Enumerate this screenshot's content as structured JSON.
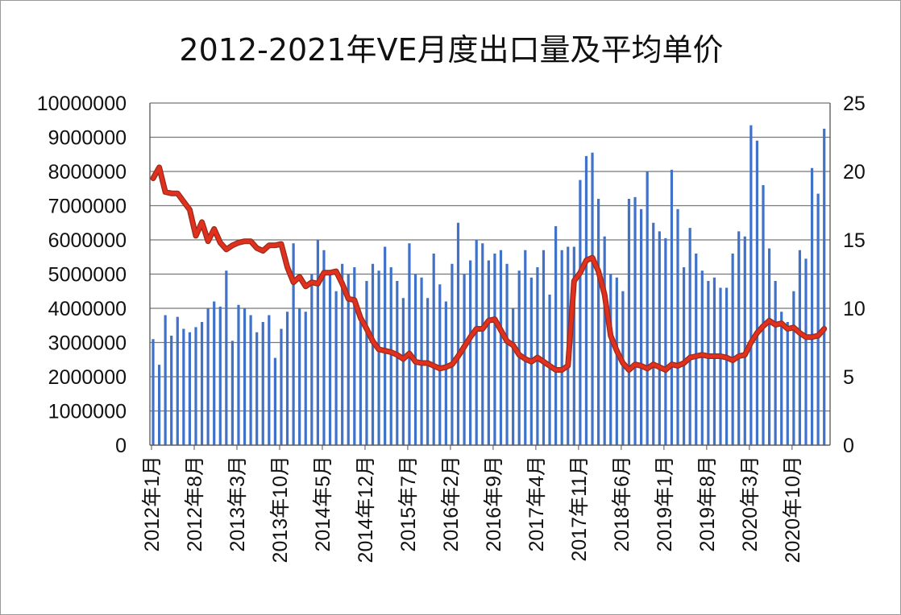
{
  "chart_data": {
    "type": "bar+line",
    "title": "2012-2021年VE月度出口量及平均单价",
    "xlabel": "",
    "ylabel": "",
    "y2label": "",
    "ylim": [
      0,
      10000000
    ],
    "y2lim": [
      0,
      25
    ],
    "yticks": [
      "0",
      "1000000",
      "2000000",
      "3000000",
      "4000000",
      "5000000",
      "6000000",
      "7000000",
      "8000000",
      "9000000",
      "10000000"
    ],
    "y2ticks": [
      "0",
      "5",
      "10",
      "15",
      "20",
      "25"
    ],
    "grid": true,
    "legend": "none",
    "x_tick_labels": [
      "2012年1月",
      "2012年8月",
      "2013年3月",
      "2013年10月",
      "2014年5月",
      "2014年12月",
      "2015年7月",
      "2016年2月",
      "2016年9月",
      "2017年4月",
      "2017年11月",
      "2018年6月",
      "2019年1月",
      "2019年8月",
      "2020年3月",
      "2020年10月"
    ],
    "categories": [
      "2012年1月",
      "2012年2月",
      "2012年3月",
      "2012年4月",
      "2012年5月",
      "2012年6月",
      "2012年7月",
      "2012年8月",
      "2012年9月",
      "2012年10月",
      "2012年11月",
      "2012年12月",
      "2013年1月",
      "2013年2月",
      "2013年3月",
      "2013年4月",
      "2013年5月",
      "2013年6月",
      "2013年7月",
      "2013年8月",
      "2013年9月",
      "2013年10月",
      "2013年11月",
      "2013年12月",
      "2014年1月",
      "2014年2月",
      "2014年3月",
      "2014年4月",
      "2014年5月",
      "2014年6月",
      "2014年7月",
      "2014年8月",
      "2014年9月",
      "2014年10月",
      "2014年11月",
      "2014年12月",
      "2015年1月",
      "2015年2月",
      "2015年3月",
      "2015年4月",
      "2015年5月",
      "2015年6月",
      "2015年7月",
      "2015年8月",
      "2015年9月",
      "2015年10月",
      "2015年11月",
      "2015年12月",
      "2016年1月",
      "2016年2月",
      "2016年3月",
      "2016年4月",
      "2016年5月",
      "2016年6月",
      "2016年7月",
      "2016年8月",
      "2016年9月",
      "2016年10月",
      "2016年11月",
      "2016年12月",
      "2017年1月",
      "2017年2月",
      "2017年3月",
      "2017年4月",
      "2017年5月",
      "2017年6月",
      "2017年7月",
      "2017年8月",
      "2017年9月",
      "2017年10月",
      "2017年11月",
      "2017年12月",
      "2018年1月",
      "2018年2月",
      "2018年3月",
      "2018年4月",
      "2018年5月",
      "2018年6月",
      "2018年7月",
      "2018年8月",
      "2018年9月",
      "2018年10月",
      "2018年11月",
      "2018年12月",
      "2019年1月",
      "2019年2月",
      "2019年3月",
      "2019年4月",
      "2019年5月",
      "2019年6月",
      "2019年7月",
      "2019年8月",
      "2019年9月",
      "2019年10月",
      "2019年11月",
      "2019年12月",
      "2020年1月",
      "2020年2月",
      "2020年3月",
      "2020年4月",
      "2020年5月",
      "2020年6月",
      "2020年7月",
      "2020年8月",
      "2020年9月",
      "2020年10月",
      "2020年11月",
      "2020年12月",
      "2021年1月",
      "2021年2月",
      "2021年3月"
    ],
    "series": [
      {
        "type": "bar",
        "axis": "left",
        "color": "#3f72c8",
        "values": [
          3100000,
          2350000,
          3800000,
          3200000,
          3750000,
          3400000,
          3300000,
          3450000,
          3600000,
          4000000,
          4200000,
          4050000,
          5100000,
          3050000,
          4100000,
          4000000,
          3800000,
          3300000,
          3600000,
          3800000,
          2550000,
          3400000,
          3900000,
          5900000,
          4000000,
          3900000,
          5000000,
          6000000,
          5700000,
          5000000,
          4500000,
          5300000,
          5000000,
          5200000,
          3600000,
          4800000,
          5300000,
          5100000,
          5800000,
          5200000,
          4800000,
          4300000,
          5900000,
          5000000,
          4900000,
          4300000,
          5600000,
          4700000,
          4200000,
          5300000,
          6500000,
          5000000,
          5400000,
          6000000,
          5900000,
          5400000,
          5600000,
          5700000,
          5300000,
          4000000,
          5100000,
          5700000,
          4900000,
          5200000,
          5700000,
          4400000,
          6400000,
          5700000,
          5800000,
          5800000,
          7750000,
          8450000,
          8550000,
          7200000,
          6100000,
          5000000,
          4900000,
          4500000,
          7200000,
          7250000,
          6900000,
          8000000,
          6500000,
          6250000,
          6050000,
          8050000,
          6900000,
          5200000,
          6350000,
          5600000,
          5100000,
          4800000,
          4900000,
          4600000,
          4600000,
          5600000,
          6250000,
          6100000,
          9350000,
          8900000,
          7600000,
          5750000,
          4800000,
          3900000,
          3600000,
          4500000,
          5700000,
          5450000,
          8100000,
          7350000,
          9250000
        ]
      },
      {
        "type": "line",
        "axis": "right",
        "color": "#e0301e",
        "values": [
          19.5,
          20.3,
          18.5,
          18.4,
          18.4,
          17.8,
          17.2,
          15.3,
          16.3,
          14.9,
          15.8,
          14.8,
          14.3,
          14.6,
          14.8,
          14.9,
          14.9,
          14.4,
          14.2,
          14.6,
          14.6,
          14.7,
          13.0,
          11.9,
          12.3,
          11.6,
          11.9,
          11.8,
          12.6,
          12.6,
          12.7,
          11.8,
          10.7,
          10.6,
          9.3,
          8.5,
          7.6,
          7.0,
          6.9,
          6.8,
          6.6,
          6.3,
          6.7,
          6.1,
          6.0,
          6.0,
          5.8,
          5.6,
          5.7,
          5.9,
          6.5,
          7.2,
          7.9,
          8.5,
          8.5,
          9.1,
          9.2,
          8.4,
          7.6,
          7.3,
          6.6,
          6.3,
          6.1,
          6.4,
          6.1,
          5.8,
          5.5,
          5.5,
          5.8,
          12.0,
          12.6,
          13.5,
          13.7,
          12.7,
          11.0,
          8.0,
          6.9,
          6.0,
          5.5,
          5.9,
          5.8,
          5.6,
          5.9,
          5.7,
          5.5,
          5.9,
          5.8,
          6.0,
          6.4,
          6.5,
          6.6,
          6.5,
          6.5,
          6.5,
          6.4,
          6.2,
          6.5,
          6.6,
          7.5,
          8.2,
          8.7,
          9.1,
          8.8,
          8.9,
          8.5,
          8.6,
          8.2,
          7.9,
          7.9,
          8.0,
          8.5
        ]
      }
    ]
  }
}
